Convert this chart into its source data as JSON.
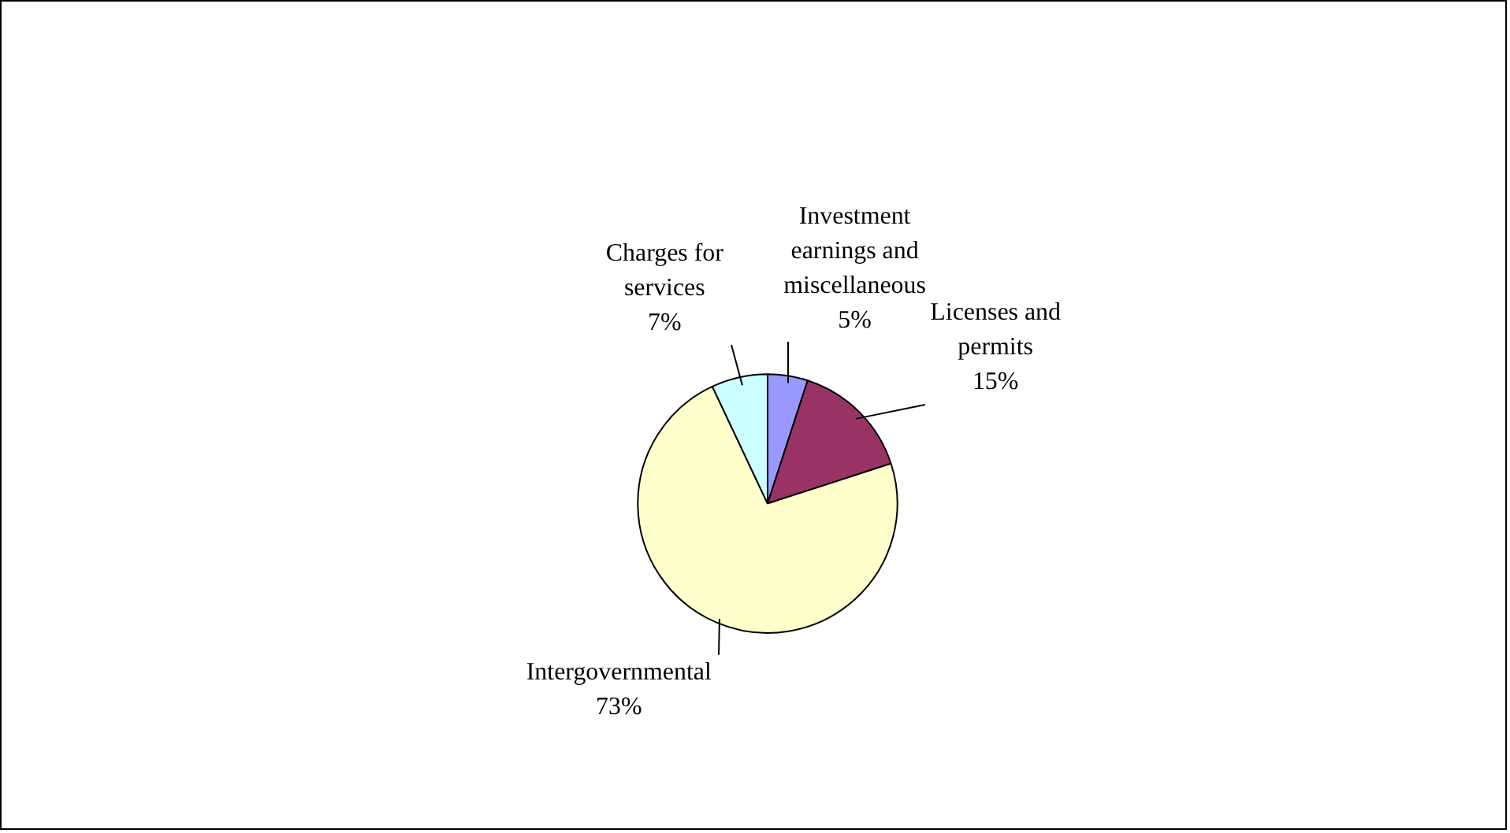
{
  "chart_data": {
    "type": "pie",
    "categories": [
      "Investment earnings and miscellaneous",
      "Licenses and permits",
      "Intergovernmental",
      "Charges for services"
    ],
    "values": [
      5,
      15,
      73,
      7
    ],
    "colors": [
      "#9999ff",
      "#993366",
      "#ffffcc",
      "#ccffff"
    ],
    "value_labels": [
      "5%",
      "15%",
      "73%",
      "7%"
    ]
  }
}
